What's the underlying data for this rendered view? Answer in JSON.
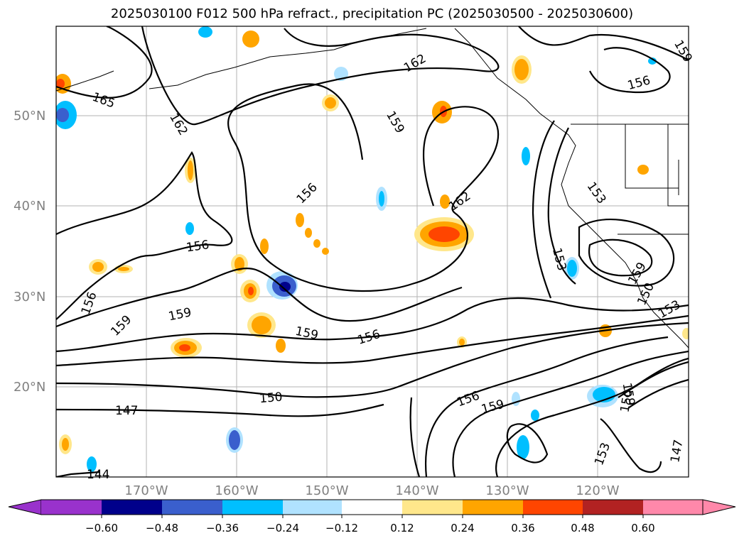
{
  "title": "2025030100 F012 500 hPa refract., precipitation PC (2025030500 - 2025030600)",
  "lat_labels": [
    "50°N",
    "40°N",
    "30°N",
    "20°N"
  ],
  "lon_labels": [
    "170°W",
    "160°W",
    "150°W",
    "140°W",
    "130°W",
    "120°W"
  ],
  "contour_labels": [
    "165",
    "162",
    "162",
    "159",
    "156",
    "162",
    "156",
    "156",
    "159",
    "159",
    "159",
    "156",
    "156",
    "159",
    "150",
    "147",
    "144",
    "153",
    "153",
    "159",
    "150",
    "153",
    "159",
    "150",
    "153",
    "147",
    "156",
    "159"
  ],
  "colorbar": {
    "ticks": [
      "−0.60",
      "−0.48",
      "−0.36",
      "−0.24",
      "−0.12",
      "0.12",
      "0.24",
      "0.36",
      "0.48",
      "0.60"
    ],
    "colors": [
      "#9932cc",
      "#00008b",
      "#3a5fcd",
      "#00bfff",
      "#b0e2ff",
      "#ffffff",
      "#ffe78b",
      "#ffa500",
      "#ff4500",
      "#b22222",
      "#ff88aa"
    ]
  }
}
